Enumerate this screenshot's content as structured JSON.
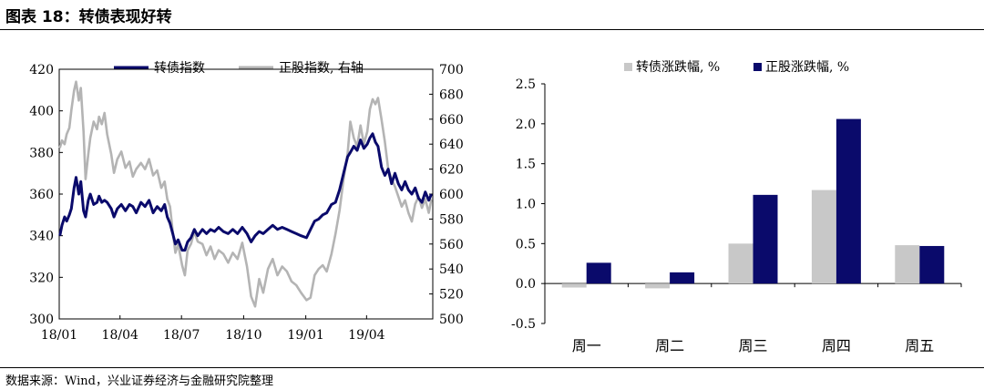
{
  "header": {
    "title": "图表 18：转债表现好转"
  },
  "footer": {
    "source": "数据来源：Wind，兴业证券经济与金融研究院整理"
  },
  "colors": {
    "navy": "#0a0a6b",
    "gray": "#b4b4b4",
    "axis": "#000000"
  },
  "chart_data": [
    {
      "type": "line",
      "x_ticks": [
        "18/01",
        "18/04",
        "18/07",
        "18/10",
        "19/01",
        "19/04"
      ],
      "x_range": [
        "2018-01-01",
        "2019-07-08"
      ],
      "ylim_left": [
        300,
        420
      ],
      "ylim_right": [
        500,
        700
      ],
      "yticks_left": [
        300,
        320,
        340,
        360,
        380,
        400,
        420
      ],
      "yticks_right": [
        500,
        520,
        540,
        560,
        580,
        600,
        620,
        640,
        660,
        680,
        700
      ],
      "legend_position": "top",
      "series": [
        {
          "name": "转债指数",
          "axis": "left",
          "color": "#0a0a6b",
          "points": [
            [
              "2018-01-02",
              340
            ],
            [
              "2018-01-05",
              345
            ],
            [
              "2018-01-09",
              349
            ],
            [
              "2018-01-12",
              347
            ],
            [
              "2018-01-16",
              350
            ],
            [
              "2018-01-19",
              353
            ],
            [
              "2018-01-23",
              363
            ],
            [
              "2018-01-26",
              368
            ],
            [
              "2018-01-30",
              360
            ],
            [
              "2018-02-02",
              366
            ],
            [
              "2018-02-06",
              352
            ],
            [
              "2018-02-09",
              349
            ],
            [
              "2018-02-13",
              357
            ],
            [
              "2018-02-16",
              360
            ],
            [
              "2018-02-21",
              355
            ],
            [
              "2018-02-26",
              356
            ],
            [
              "2018-03-01",
              359
            ],
            [
              "2018-03-05",
              356
            ],
            [
              "2018-03-09",
              357
            ],
            [
              "2018-03-13",
              356
            ],
            [
              "2018-03-19",
              353
            ],
            [
              "2018-03-23",
              349
            ],
            [
              "2018-03-28",
              353
            ],
            [
              "2018-04-03",
              355
            ],
            [
              "2018-04-09",
              352
            ],
            [
              "2018-04-15",
              355
            ],
            [
              "2018-04-20",
              354
            ],
            [
              "2018-04-25",
              351
            ],
            [
              "2018-05-02",
              356
            ],
            [
              "2018-05-08",
              354
            ],
            [
              "2018-05-14",
              357
            ],
            [
              "2018-05-20",
              351
            ],
            [
              "2018-05-26",
              354
            ],
            [
              "2018-06-01",
              352
            ],
            [
              "2018-06-06",
              355
            ],
            [
              "2018-06-10",
              349
            ],
            [
              "2018-06-14",
              346
            ],
            [
              "2018-06-18",
              341
            ],
            [
              "2018-06-22",
              336
            ],
            [
              "2018-06-26",
              338
            ],
            [
              "2018-07-02",
              333
            ],
            [
              "2018-07-06",
              333
            ],
            [
              "2018-07-10",
              337
            ],
            [
              "2018-07-15",
              339
            ],
            [
              "2018-07-20",
              343
            ],
            [
              "2018-07-25",
              340
            ],
            [
              "2018-08-01",
              343
            ],
            [
              "2018-08-07",
              341
            ],
            [
              "2018-08-13",
              343
            ],
            [
              "2018-08-19",
              342
            ],
            [
              "2018-08-25",
              344
            ],
            [
              "2018-09-01",
              342
            ],
            [
              "2018-09-08",
              341
            ],
            [
              "2018-09-15",
              343
            ],
            [
              "2018-09-22",
              341
            ],
            [
              "2018-09-29",
              344
            ],
            [
              "2018-10-06",
              341
            ],
            [
              "2018-10-12",
              337
            ],
            [
              "2018-10-18",
              340
            ],
            [
              "2018-10-24",
              342
            ],
            [
              "2018-10-30",
              341
            ],
            [
              "2018-11-06",
              343
            ],
            [
              "2018-11-13",
              345
            ],
            [
              "2018-11-20",
              343
            ],
            [
              "2018-11-27",
              344
            ],
            [
              "2018-12-04",
              343
            ],
            [
              "2018-12-11",
              342
            ],
            [
              "2018-12-18",
              341
            ],
            [
              "2018-12-25",
              340
            ],
            [
              "2019-01-02",
              339
            ],
            [
              "2019-01-08",
              343
            ],
            [
              "2019-01-14",
              347
            ],
            [
              "2019-01-20",
              348
            ],
            [
              "2019-01-26",
              350
            ],
            [
              "2019-02-01",
              351
            ],
            [
              "2019-02-08",
              355
            ],
            [
              "2019-02-14",
              356
            ],
            [
              "2019-02-20",
              362
            ],
            [
              "2019-02-26",
              370
            ],
            [
              "2019-03-04",
              378
            ],
            [
              "2019-03-08",
              380
            ],
            [
              "2019-03-13",
              383
            ],
            [
              "2019-03-18",
              381
            ],
            [
              "2019-03-23",
              386
            ],
            [
              "2019-03-28",
              382
            ],
            [
              "2019-04-02",
              384
            ],
            [
              "2019-04-06",
              387
            ],
            [
              "2019-04-10",
              389
            ],
            [
              "2019-04-14",
              385
            ],
            [
              "2019-04-18",
              383
            ],
            [
              "2019-04-23",
              373
            ],
            [
              "2019-04-28",
              369
            ],
            [
              "2019-05-03",
              372
            ],
            [
              "2019-05-08",
              365
            ],
            [
              "2019-05-13",
              370
            ],
            [
              "2019-05-18",
              365
            ],
            [
              "2019-05-23",
              362
            ],
            [
              "2019-05-28",
              366
            ],
            [
              "2019-06-02",
              362
            ],
            [
              "2019-06-07",
              360
            ],
            [
              "2019-06-12",
              363
            ],
            [
              "2019-06-17",
              358
            ],
            [
              "2019-06-22",
              356
            ],
            [
              "2019-06-27",
              361
            ],
            [
              "2019-07-02",
              357
            ],
            [
              "2019-07-06",
              360
            ]
          ]
        },
        {
          "name": "正股指数, 右轴",
          "axis": "right",
          "color": "#b4b4b4",
          "points": [
            [
              "2018-01-02",
              637
            ],
            [
              "2018-01-05",
              643
            ],
            [
              "2018-01-09",
              640
            ],
            [
              "2018-01-12",
              648
            ],
            [
              "2018-01-16",
              653
            ],
            [
              "2018-01-19",
              667
            ],
            [
              "2018-01-23",
              683
            ],
            [
              "2018-01-26",
              690
            ],
            [
              "2018-01-30",
              675
            ],
            [
              "2018-02-02",
              685
            ],
            [
              "2018-02-06",
              650
            ],
            [
              "2018-02-09",
              612
            ],
            [
              "2018-02-13",
              632
            ],
            [
              "2018-02-16",
              645
            ],
            [
              "2018-02-21",
              658
            ],
            [
              "2018-02-26",
              652
            ],
            [
              "2018-03-01",
              662
            ],
            [
              "2018-03-05",
              656
            ],
            [
              "2018-03-09",
              665
            ],
            [
              "2018-03-13",
              648
            ],
            [
              "2018-03-19",
              632
            ],
            [
              "2018-03-23",
              617
            ],
            [
              "2018-03-28",
              628
            ],
            [
              "2018-04-03",
              634
            ],
            [
              "2018-04-09",
              621
            ],
            [
              "2018-04-15",
              626
            ],
            [
              "2018-04-20",
              614
            ],
            [
              "2018-04-25",
              620
            ],
            [
              "2018-05-02",
              625
            ],
            [
              "2018-05-08",
              620
            ],
            [
              "2018-05-14",
              628
            ],
            [
              "2018-05-20",
              615
            ],
            [
              "2018-05-26",
              619
            ],
            [
              "2018-06-01",
              605
            ],
            [
              "2018-06-06",
              610
            ],
            [
              "2018-06-10",
              596
            ],
            [
              "2018-06-14",
              590
            ],
            [
              "2018-06-18",
              570
            ],
            [
              "2018-06-22",
              553
            ],
            [
              "2018-06-26",
              560
            ],
            [
              "2018-07-02",
              543
            ],
            [
              "2018-07-06",
              535
            ],
            [
              "2018-07-10",
              555
            ],
            [
              "2018-07-15",
              560
            ],
            [
              "2018-07-20",
              570
            ],
            [
              "2018-07-25",
              562
            ],
            [
              "2018-08-01",
              560
            ],
            [
              "2018-08-07",
              551
            ],
            [
              "2018-08-13",
              558
            ],
            [
              "2018-08-19",
              548
            ],
            [
              "2018-08-25",
              555
            ],
            [
              "2018-09-01",
              552
            ],
            [
              "2018-09-08",
              545
            ],
            [
              "2018-09-15",
              553
            ],
            [
              "2018-09-22",
              548
            ],
            [
              "2018-09-29",
              561
            ],
            [
              "2018-10-06",
              542
            ],
            [
              "2018-10-12",
              518
            ],
            [
              "2018-10-18",
              510
            ],
            [
              "2018-10-24",
              532
            ],
            [
              "2018-10-30",
              521
            ],
            [
              "2018-11-06",
              540
            ],
            [
              "2018-11-13",
              548
            ],
            [
              "2018-11-20",
              535
            ],
            [
              "2018-11-27",
              542
            ],
            [
              "2018-12-04",
              538
            ],
            [
              "2018-12-11",
              530
            ],
            [
              "2018-12-18",
              527
            ],
            [
              "2018-12-25",
              521
            ],
            [
              "2019-01-02",
              515
            ],
            [
              "2019-01-08",
              517
            ],
            [
              "2019-01-14",
              535
            ],
            [
              "2019-01-20",
              540
            ],
            [
              "2019-01-26",
              543
            ],
            [
              "2019-02-01",
              538
            ],
            [
              "2019-02-08",
              552
            ],
            [
              "2019-02-14",
              568
            ],
            [
              "2019-02-20",
              587
            ],
            [
              "2019-02-26",
              612
            ],
            [
              "2019-03-04",
              633
            ],
            [
              "2019-03-08",
              658
            ],
            [
              "2019-03-13",
              645
            ],
            [
              "2019-03-18",
              638
            ],
            [
              "2019-03-23",
              655
            ],
            [
              "2019-03-28",
              640
            ],
            [
              "2019-04-02",
              650
            ],
            [
              "2019-04-06",
              668
            ],
            [
              "2019-04-10",
              676
            ],
            [
              "2019-04-14",
              672
            ],
            [
              "2019-04-18",
              677
            ],
            [
              "2019-04-23",
              660
            ],
            [
              "2019-04-28",
              642
            ],
            [
              "2019-05-03",
              620
            ],
            [
              "2019-05-08",
              612
            ],
            [
              "2019-05-13",
              606
            ],
            [
              "2019-05-18",
              598
            ],
            [
              "2019-05-23",
              590
            ],
            [
              "2019-05-28",
              595
            ],
            [
              "2019-06-02",
              585
            ],
            [
              "2019-06-07",
              578
            ],
            [
              "2019-06-12",
              592
            ],
            [
              "2019-06-17",
              598
            ],
            [
              "2019-06-22",
              589
            ],
            [
              "2019-06-27",
              596
            ],
            [
              "2019-07-02",
              585
            ],
            [
              "2019-07-06",
              596
            ]
          ]
        }
      ]
    },
    {
      "type": "bar",
      "categories": [
        "周一",
        "周二",
        "周三",
        "周四",
        "周五"
      ],
      "ylim": [
        -0.5,
        2.5
      ],
      "yticks": [
        "-0.5",
        "0.0",
        "0.5",
        "1.0",
        "1.5",
        "2.0",
        "2.5"
      ],
      "legend_position": "top",
      "series": [
        {
          "name": "转债涨跌幅, %",
          "color": "#c8c8c8",
          "values": [
            -0.05,
            -0.06,
            0.5,
            1.17,
            0.48
          ]
        },
        {
          "name": "正股涨跌幅, %",
          "color": "#0a0a6b",
          "values": [
            0.26,
            0.14,
            1.11,
            2.06,
            0.47
          ]
        }
      ]
    }
  ]
}
